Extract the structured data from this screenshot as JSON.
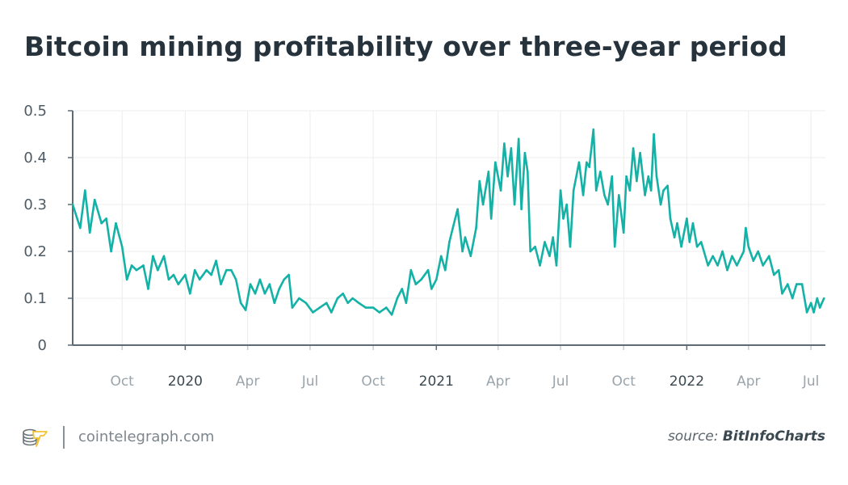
{
  "title": "Bitcoin mining profitability over three-year period",
  "footer": {
    "site": "cointelegraph.com",
    "source_prefix": "source:",
    "source_name": "BitInfoCharts"
  },
  "colors": {
    "line": "#14b2a6",
    "title": "#27333c",
    "year_tick": "#3c4850",
    "month_tick": "#9aa4ab",
    "grid": "#ececec",
    "axis": "#5f6b74",
    "logo_accent": "#f2c230",
    "logo_coins": "#6b747a"
  },
  "chart_data": {
    "type": "line",
    "title": "Bitcoin mining profitability over three-year period",
    "xlabel": "",
    "ylabel": "",
    "xlim": [
      "2019-07-21",
      "2022-07-22"
    ],
    "ylim": [
      0,
      0.5
    ],
    "grid": true,
    "legend": "none",
    "y_ticks": [
      {
        "v": 0,
        "label": "0"
      },
      {
        "v": 0.1,
        "label": "0.1"
      },
      {
        "v": 0.2,
        "label": "0.2"
      },
      {
        "v": 0.3,
        "label": "0.3"
      },
      {
        "v": 0.4,
        "label": "0.4"
      },
      {
        "v": 0.5,
        "label": "0.5"
      }
    ],
    "x_ticks": [
      {
        "date": "2019-10-01",
        "label": "Oct",
        "year": false
      },
      {
        "date": "2020-01-01",
        "label": "2020",
        "year": true
      },
      {
        "date": "2020-04-01",
        "label": "Apr",
        "year": false
      },
      {
        "date": "2020-07-01",
        "label": "Jul",
        "year": false
      },
      {
        "date": "2020-10-01",
        "label": "Oct",
        "year": false
      },
      {
        "date": "2021-01-01",
        "label": "2021",
        "year": true
      },
      {
        "date": "2021-04-01",
        "label": "Apr",
        "year": false
      },
      {
        "date": "2021-07-01",
        "label": "Jul",
        "year": false
      },
      {
        "date": "2021-10-01",
        "label": "Oct",
        "year": false
      },
      {
        "date": "2022-01-01",
        "label": "2022",
        "year": true
      },
      {
        "date": "2022-04-01",
        "label": "Apr",
        "year": false
      },
      {
        "date": "2022-07-01",
        "label": "Jul",
        "year": false
      }
    ],
    "series": [
      {
        "points": [
          [
            "2019-07-21",
            0.3
          ],
          [
            "2019-08-01",
            0.25
          ],
          [
            "2019-08-08",
            0.33
          ],
          [
            "2019-08-15",
            0.24
          ],
          [
            "2019-08-22",
            0.31
          ],
          [
            "2019-09-01",
            0.26
          ],
          [
            "2019-09-08",
            0.27
          ],
          [
            "2019-09-15",
            0.2
          ],
          [
            "2019-09-22",
            0.26
          ],
          [
            "2019-10-01",
            0.21
          ],
          [
            "2019-10-08",
            0.14
          ],
          [
            "2019-10-15",
            0.17
          ],
          [
            "2019-10-22",
            0.16
          ],
          [
            "2019-11-01",
            0.17
          ],
          [
            "2019-11-08",
            0.12
          ],
          [
            "2019-11-15",
            0.19
          ],
          [
            "2019-11-22",
            0.16
          ],
          [
            "2019-12-01",
            0.19
          ],
          [
            "2019-12-08",
            0.14
          ],
          [
            "2019-12-15",
            0.15
          ],
          [
            "2019-12-22",
            0.13
          ],
          [
            "2020-01-01",
            0.15
          ],
          [
            "2020-01-08",
            0.11
          ],
          [
            "2020-01-15",
            0.16
          ],
          [
            "2020-01-22",
            0.14
          ],
          [
            "2020-02-01",
            0.16
          ],
          [
            "2020-02-08",
            0.15
          ],
          [
            "2020-02-15",
            0.18
          ],
          [
            "2020-02-22",
            0.13
          ],
          [
            "2020-03-01",
            0.16
          ],
          [
            "2020-03-08",
            0.16
          ],
          [
            "2020-03-15",
            0.14
          ],
          [
            "2020-03-22",
            0.09
          ],
          [
            "2020-03-29",
            0.075
          ],
          [
            "2020-04-05",
            0.13
          ],
          [
            "2020-04-12",
            0.11
          ],
          [
            "2020-04-19",
            0.14
          ],
          [
            "2020-04-26",
            0.11
          ],
          [
            "2020-05-03",
            0.13
          ],
          [
            "2020-05-10",
            0.09
          ],
          [
            "2020-05-17",
            0.12
          ],
          [
            "2020-05-24",
            0.14
          ],
          [
            "2020-05-31",
            0.15
          ],
          [
            "2020-06-05",
            0.08
          ],
          [
            "2020-06-15",
            0.1
          ],
          [
            "2020-06-25",
            0.09
          ],
          [
            "2020-07-05",
            0.07
          ],
          [
            "2020-07-15",
            0.08
          ],
          [
            "2020-07-25",
            0.09
          ],
          [
            "2020-08-01",
            0.07
          ],
          [
            "2020-08-10",
            0.1
          ],
          [
            "2020-08-18",
            0.11
          ],
          [
            "2020-08-25",
            0.09
          ],
          [
            "2020-09-01",
            0.1
          ],
          [
            "2020-09-10",
            0.09
          ],
          [
            "2020-09-20",
            0.08
          ],
          [
            "2020-10-01",
            0.08
          ],
          [
            "2020-10-10",
            0.07
          ],
          [
            "2020-10-20",
            0.08
          ],
          [
            "2020-10-28",
            0.065
          ],
          [
            "2020-11-05",
            0.1
          ],
          [
            "2020-11-12",
            0.12
          ],
          [
            "2020-11-18",
            0.09
          ],
          [
            "2020-11-25",
            0.16
          ],
          [
            "2020-12-02",
            0.13
          ],
          [
            "2020-12-10",
            0.14
          ],
          [
            "2020-12-20",
            0.16
          ],
          [
            "2020-12-25",
            0.12
          ],
          [
            "2021-01-01",
            0.14
          ],
          [
            "2021-01-08",
            0.19
          ],
          [
            "2021-01-14",
            0.16
          ],
          [
            "2021-01-20",
            0.22
          ],
          [
            "2021-01-25",
            0.25
          ],
          [
            "2021-02-01",
            0.29
          ],
          [
            "2021-02-08",
            0.2
          ],
          [
            "2021-02-12",
            0.23
          ],
          [
            "2021-02-20",
            0.19
          ],
          [
            "2021-02-28",
            0.25
          ],
          [
            "2021-03-05",
            0.35
          ],
          [
            "2021-03-10",
            0.3
          ],
          [
            "2021-03-18",
            0.37
          ],
          [
            "2021-03-22",
            0.27
          ],
          [
            "2021-03-28",
            0.39
          ],
          [
            "2021-04-05",
            0.33
          ],
          [
            "2021-04-10",
            0.43
          ],
          [
            "2021-04-15",
            0.36
          ],
          [
            "2021-04-20",
            0.42
          ],
          [
            "2021-04-25",
            0.3
          ],
          [
            "2021-05-01",
            0.44
          ],
          [
            "2021-05-05",
            0.29
          ],
          [
            "2021-05-10",
            0.41
          ],
          [
            "2021-05-14",
            0.37
          ],
          [
            "2021-05-18",
            0.2
          ],
          [
            "2021-05-25",
            0.21
          ],
          [
            "2021-06-01",
            0.17
          ],
          [
            "2021-06-08",
            0.22
          ],
          [
            "2021-06-15",
            0.19
          ],
          [
            "2021-06-20",
            0.23
          ],
          [
            "2021-06-25",
            0.17
          ],
          [
            "2021-07-01",
            0.33
          ],
          [
            "2021-07-05",
            0.27
          ],
          [
            "2021-07-10",
            0.3
          ],
          [
            "2021-07-15",
            0.21
          ],
          [
            "2021-07-20",
            0.33
          ],
          [
            "2021-07-28",
            0.39
          ],
          [
            "2021-08-03",
            0.32
          ],
          [
            "2021-08-08",
            0.39
          ],
          [
            "2021-08-12",
            0.38
          ],
          [
            "2021-08-18",
            0.46
          ],
          [
            "2021-08-22",
            0.33
          ],
          [
            "2021-08-28",
            0.37
          ],
          [
            "2021-09-03",
            0.32
          ],
          [
            "2021-09-08",
            0.3
          ],
          [
            "2021-09-14",
            0.36
          ],
          [
            "2021-09-18",
            0.21
          ],
          [
            "2021-09-24",
            0.32
          ],
          [
            "2021-10-01",
            0.24
          ],
          [
            "2021-10-05",
            0.36
          ],
          [
            "2021-10-10",
            0.33
          ],
          [
            "2021-10-15",
            0.42
          ],
          [
            "2021-10-20",
            0.35
          ],
          [
            "2021-10-25",
            0.41
          ],
          [
            "2021-11-01",
            0.32
          ],
          [
            "2021-11-06",
            0.36
          ],
          [
            "2021-11-10",
            0.33
          ],
          [
            "2021-11-14",
            0.45
          ],
          [
            "2021-11-18",
            0.36
          ],
          [
            "2021-11-24",
            0.3
          ],
          [
            "2021-11-28",
            0.33
          ],
          [
            "2021-12-04",
            0.34
          ],
          [
            "2021-12-08",
            0.27
          ],
          [
            "2021-12-14",
            0.23
          ],
          [
            "2021-12-18",
            0.26
          ],
          [
            "2021-12-24",
            0.21
          ],
          [
            "2022-01-01",
            0.27
          ],
          [
            "2022-01-05",
            0.22
          ],
          [
            "2022-01-10",
            0.26
          ],
          [
            "2022-01-16",
            0.21
          ],
          [
            "2022-01-22",
            0.22
          ],
          [
            "2022-02-01",
            0.17
          ],
          [
            "2022-02-08",
            0.19
          ],
          [
            "2022-02-15",
            0.17
          ],
          [
            "2022-02-22",
            0.2
          ],
          [
            "2022-03-01",
            0.16
          ],
          [
            "2022-03-08",
            0.19
          ],
          [
            "2022-03-15",
            0.17
          ],
          [
            "2022-03-25",
            0.2
          ],
          [
            "2022-03-28",
            0.25
          ],
          [
            "2022-04-01",
            0.21
          ],
          [
            "2022-04-08",
            0.18
          ],
          [
            "2022-04-15",
            0.2
          ],
          [
            "2022-04-22",
            0.17
          ],
          [
            "2022-05-01",
            0.19
          ],
          [
            "2022-05-08",
            0.15
          ],
          [
            "2022-05-15",
            0.16
          ],
          [
            "2022-05-20",
            0.11
          ],
          [
            "2022-05-28",
            0.13
          ],
          [
            "2022-06-04",
            0.1
          ],
          [
            "2022-06-10",
            0.13
          ],
          [
            "2022-06-18",
            0.13
          ],
          [
            "2022-06-25",
            0.07
          ],
          [
            "2022-07-01",
            0.09
          ],
          [
            "2022-07-05",
            0.07
          ],
          [
            "2022-07-10",
            0.1
          ],
          [
            "2022-07-14",
            0.08
          ],
          [
            "2022-07-20",
            0.1
          ]
        ]
      }
    ]
  }
}
